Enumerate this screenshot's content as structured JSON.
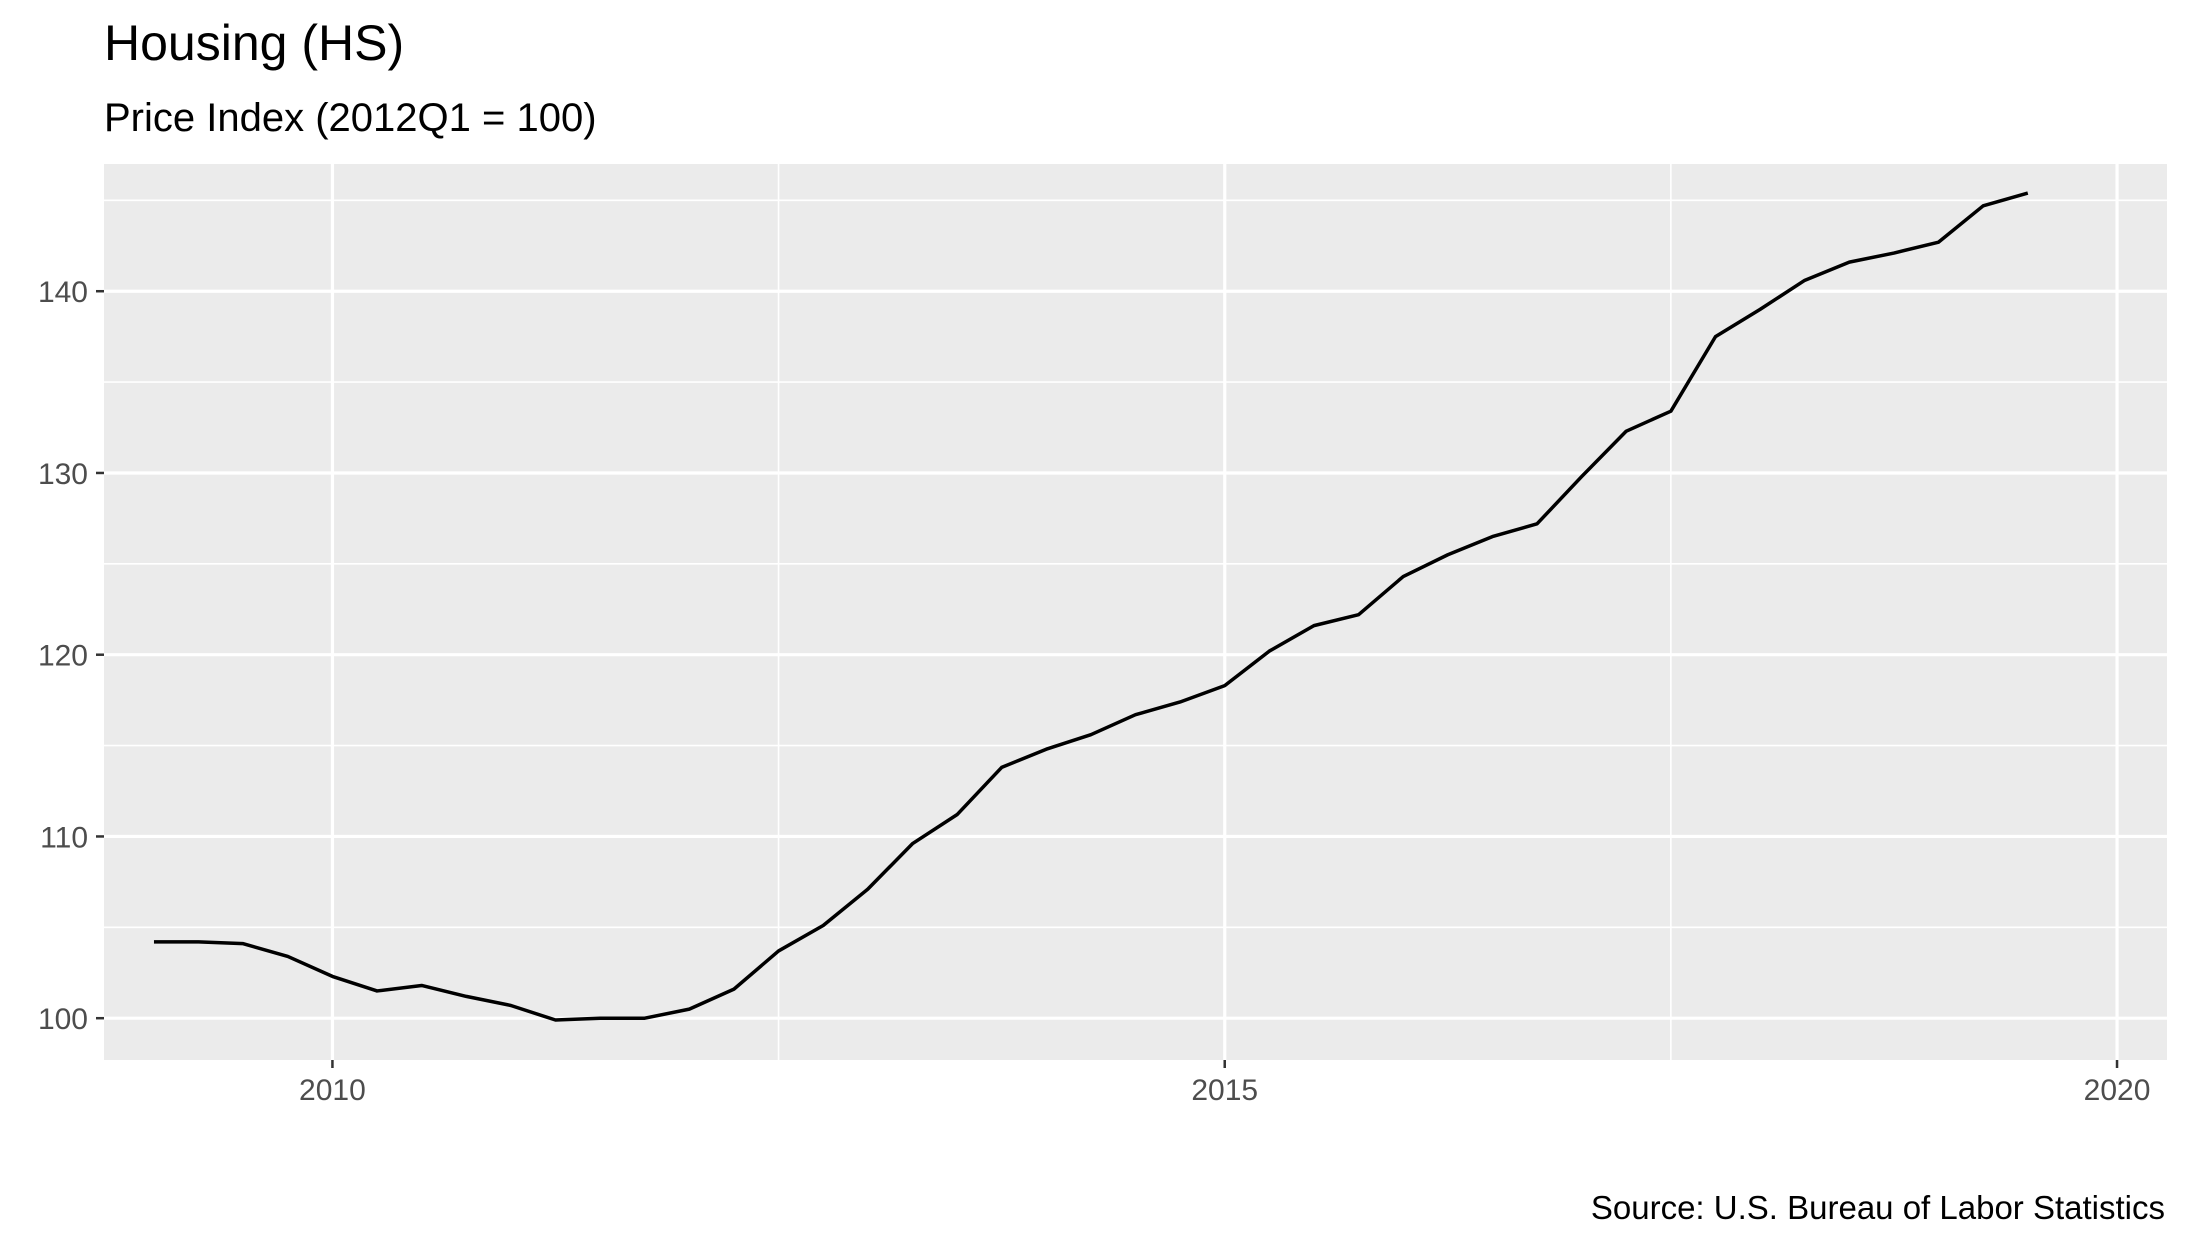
{
  "chart_data": {
    "type": "line",
    "title": "Housing (HS)",
    "subtitle": "Price Index (2012Q1 = 100)",
    "caption": "Source: U.S. Bureau of Labor Statistics",
    "xlabel": "",
    "ylabel": "",
    "xlim": [
      2008.72,
      2020.28
    ],
    "ylim": [
      97.7,
      147.0
    ],
    "x_ticks": [
      2010,
      2015,
      2020
    ],
    "y_ticks": [
      100,
      110,
      120,
      130,
      140
    ],
    "x_tick_labels": [
      "2010",
      "2015",
      "2020"
    ],
    "y_tick_labels": [
      "100",
      "110",
      "120",
      "130",
      "140"
    ],
    "grid": true,
    "legend": "none",
    "colors": {
      "panel": "#ebebeb",
      "grid": "#ffffff",
      "line": "#000000"
    },
    "series": [
      {
        "x": [
          2009.0,
          2009.25,
          2009.5,
          2009.75,
          2010.0,
          2010.25,
          2010.5,
          2010.75,
          2011.0,
          2011.25,
          2011.5,
          2011.75,
          2012.0,
          2012.25,
          2012.5,
          2012.75,
          2013.0,
          2013.25,
          2013.5,
          2013.75,
          2014.0,
          2014.25,
          2014.5,
          2014.75,
          2015.0,
          2015.25,
          2015.5,
          2015.75,
          2016.0,
          2016.25,
          2016.5,
          2016.75,
          2017.0,
          2017.25,
          2017.5,
          2017.75,
          2018.0,
          2018.25,
          2018.5,
          2018.75,
          2019.0,
          2019.25,
          2019.5,
          2019.75
        ],
        "values": [
          104.2,
          104.2,
          104.1,
          103.4,
          102.3,
          101.5,
          101.8,
          101.2,
          100.7,
          99.9,
          100.0,
          100.0,
          100.5,
          101.6,
          103.7,
          105.1,
          107.1,
          109.6,
          111.2,
          113.8,
          114.8,
          115.6,
          116.7,
          117.4,
          118.3,
          120.2,
          121.6,
          122.2,
          124.3,
          125.5,
          126.5,
          127.2,
          129.8,
          132.3,
          133.4,
          137.5,
          139.0,
          140.6,
          141.6,
          142.1,
          142.7,
          144.7,
          145.4,
          null
        ]
      }
    ]
  }
}
